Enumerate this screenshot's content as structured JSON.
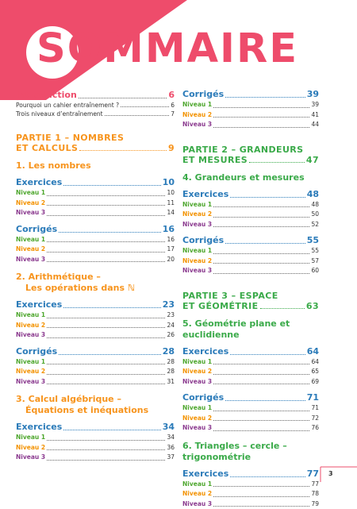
{
  "title": "SOMMAIRE",
  "introduction": {
    "label": "Introduction",
    "page": 6,
    "items": [
      {
        "label": "Pourquoi un cahier entraînement ?",
        "page": 6
      },
      {
        "label": "Trois niveaux d’entraînement",
        "page": 7
      }
    ]
  },
  "level_colors": [
    "#4ea72e",
    "#f39200",
    "#8b3a8f"
  ],
  "parts": [
    {
      "title": [
        "PARTIE 1 – NOMBRES",
        "ET CALCULS"
      ],
      "page": 9,
      "color": "#f7941d",
      "chapters": [
        {
          "title": [
            "1. Les nombres"
          ],
          "blocks": [
            {
              "label": "Exercices",
              "page": 10,
              "levels": [
                {
                  "label": "Niveau 1",
                  "page": 10
                },
                {
                  "label": "Niveau 2",
                  "page": 11
                },
                {
                  "label": "Niveau 3",
                  "page": 14
                }
              ]
            },
            {
              "label": "Corrigés",
              "page": 16,
              "levels": [
                {
                  "label": "Niveau 1",
                  "page": 16
                },
                {
                  "label": "Niveau 2",
                  "page": 17
                },
                {
                  "label": "Niveau 3",
                  "page": 20
                }
              ]
            }
          ]
        },
        {
          "title": [
            "2. Arithmétique –",
            "Les opérations dans ℕ"
          ],
          "blocks": [
            {
              "label": "Exercices",
              "page": 23,
              "levels": [
                {
                  "label": "Niveau 1",
                  "page": 23
                },
                {
                  "label": "Niveau 2",
                  "page": 24
                },
                {
                  "label": "Niveau 3",
                  "page": 26
                }
              ]
            },
            {
              "label": "Corrigés",
              "page": 28,
              "levels": [
                {
                  "label": "Niveau 1",
                  "page": 28
                },
                {
                  "label": "Niveau 2",
                  "page": 28
                },
                {
                  "label": "Niveau 3",
                  "page": 31
                }
              ]
            }
          ]
        },
        {
          "title": [
            "3. Calcul algébrique –",
            "Équations et inéquations"
          ],
          "blocks": [
            {
              "label": "Exercices",
              "page": 34,
              "levels": [
                {
                  "label": "Niveau 1",
                  "page": 34
                },
                {
                  "label": "Niveau 2",
                  "page": 36
                },
                {
                  "label": "Niveau 3",
                  "page": 37
                }
              ]
            },
            {
              "label": "Corrigés",
              "page": 39,
              "levels": [
                {
                  "label": "Niveau 1",
                  "page": 39
                },
                {
                  "label": "Niveau 2",
                  "page": 41
                },
                {
                  "label": "Niveau 3",
                  "page": 44
                }
              ]
            }
          ]
        }
      ]
    },
    {
      "title": [
        "PARTIE 2 – GRANDEURS",
        "ET MESURES"
      ],
      "page": 47,
      "color": "#3aaa49",
      "chapters": [
        {
          "title": [
            "4. Grandeurs et mesures"
          ],
          "blocks": [
            {
              "label": "Exercices",
              "page": 48,
              "levels": [
                {
                  "label": "Niveau 1",
                  "page": 48
                },
                {
                  "label": "Niveau 2",
                  "page": 50
                },
                {
                  "label": "Niveau 3",
                  "page": 52
                }
              ]
            },
            {
              "label": "Corrigés",
              "page": 55,
              "levels": [
                {
                  "label": "Niveau 1",
                  "page": 55
                },
                {
                  "label": "Niveau 2",
                  "page": 57
                },
                {
                  "label": "Niveau 3",
                  "page": 60
                }
              ]
            }
          ]
        }
      ]
    },
    {
      "title": [
        "PARTIE 3 – ESPACE",
        "ET GÉOMÉTRIE"
      ],
      "page": 63,
      "color": "#3aaa49",
      "chapters": [
        {
          "title": [
            "5. Géométrie plane et euclidienne"
          ],
          "blocks": [
            {
              "label": "Exercices",
              "page": 64,
              "levels": [
                {
                  "label": "Niveau 1",
                  "page": 64
                },
                {
                  "label": "Niveau 2",
                  "page": 65
                },
                {
                  "label": "Niveau 3",
                  "page": 69
                }
              ]
            },
            {
              "label": "Corrigés",
              "page": 71,
              "levels": [
                {
                  "label": "Niveau 1",
                  "page": 71
                },
                {
                  "label": "Niveau 2",
                  "page": 72
                },
                {
                  "label": "Niveau 3",
                  "page": 76
                }
              ]
            }
          ]
        },
        {
          "title": [
            "6. Triangles – cercle – trigonométrie"
          ],
          "blocks": [
            {
              "label": "Exercices",
              "page": 77,
              "levels": [
                {
                  "label": "Niveau 1",
                  "page": 77
                },
                {
                  "label": "Niveau 2",
                  "page": 78
                },
                {
                  "label": "Niveau 3",
                  "page": 79
                }
              ]
            }
          ]
        }
      ]
    }
  ],
  "page_number": 3
}
